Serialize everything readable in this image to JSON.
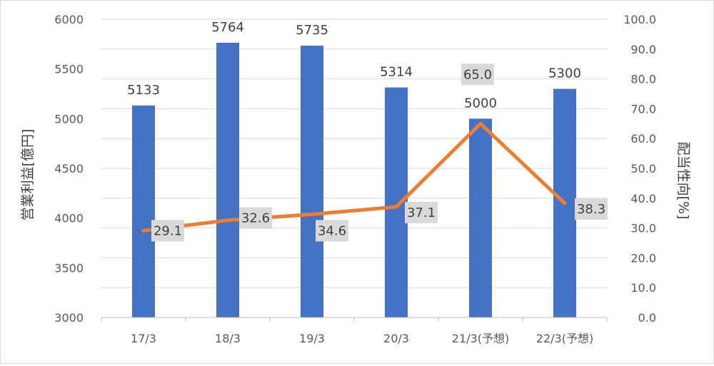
{
  "chart_data": {
    "type": "bar+line",
    "categories": [
      "17/3",
      "18/3",
      "19/3",
      "20/3",
      "21/3(予想)",
      "22/3(予想)"
    ],
    "series": [
      {
        "name": "",
        "type": "bar",
        "axis": "left",
        "color": "#4472C4",
        "values": [
          5133,
          5764,
          5735,
          5314,
          5000,
          5300
        ],
        "value_labels": [
          "5133",
          "5764",
          "5735",
          "5314",
          "5000",
          "5300"
        ]
      },
      {
        "name": "",
        "type": "line",
        "axis": "right",
        "color": "#ED7D31",
        "values": [
          29.1,
          32.6,
          34.6,
          37.1,
          65.0,
          38.3
        ],
        "value_labels": [
          "29.1",
          "32.6",
          "34.6",
          "37.1",
          "65.0",
          "38.3"
        ]
      }
    ],
    "y_left": {
      "label": "営業利益[億円]",
      "min": 3000,
      "max": 6000,
      "ticks": [
        "3000",
        "3500",
        "4000",
        "4500",
        "5000",
        "5500",
        "6000"
      ]
    },
    "y_right": {
      "label": "配当性向[%]",
      "min": 0,
      "max": 100,
      "ticks": [
        "0.0",
        "10.0",
        "20.0",
        "30.0",
        "40.0",
        "50.0",
        "60.0",
        "70.0",
        "80.0",
        "90.0",
        "100.0"
      ]
    },
    "grid": true,
    "legend": "none"
  }
}
